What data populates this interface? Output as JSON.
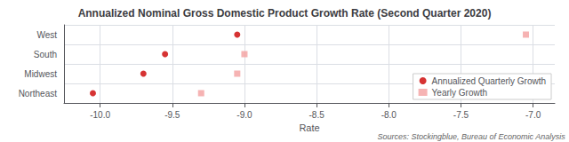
{
  "chart_data": {
    "type": "scatter",
    "title": "Annualized Nominal Gross Domestic Product Growth Rate (Second Quarter 2020)",
    "xlabel": "Rate",
    "source": "Sources: Stockingblue, Bureau of Economic Analysis",
    "orientation": "horizontal",
    "categories": [
      "West",
      "South",
      "Midwest",
      "Northeast"
    ],
    "series": [
      {
        "name": "Annualized Quarterly Growth",
        "color": "#cc0000",
        "marker": "circle",
        "values": [
          -9.05,
          -9.55,
          -9.7,
          -10.05
        ]
      },
      {
        "name": "Yearly Growth",
        "color": "#f4a0a0",
        "marker": "square",
        "values": [
          -7.05,
          -9.0,
          -9.05,
          -9.3
        ]
      }
    ],
    "xlim": [
      -10.25,
      -6.85
    ],
    "xticks": [
      {
        "value": -10.0,
        "label": "-10.0"
      },
      -9.5,
      {
        "value": -9.0,
        "label": "-9.0"
      },
      -8.5,
      {
        "value": -8.0,
        "label": "-8.0"
      },
      -7.5,
      {
        "value": -7.0,
        "label": "-7.0"
      }
    ],
    "grid": true,
    "legend": "lower right"
  }
}
